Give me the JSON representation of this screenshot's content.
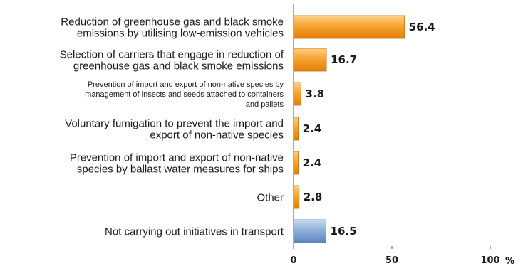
{
  "chart_data": {
    "type": "bar",
    "orientation": "horizontal",
    "categories": [
      [
        "Reduction of greenhouse gas and black smoke",
        "emissions by utilising low-emission vehicles"
      ],
      [
        "Selection of carriers that engage in reduction of",
        "greenhouse gas and black smoke emissions"
      ],
      [
        "Prevention of import and export of non-native species by",
        "management of insects and seeds attached to containers",
        "and pallets"
      ],
      [
        "Voluntary fumigation to prevent the import and",
        "export of non-native species"
      ],
      [
        "Prevention of import and export of non-native",
        "species by ballast water measures for ships"
      ],
      [
        "Other"
      ],
      [
        "Not carrying out initiatives in transport"
      ]
    ],
    "values": [
      56.4,
      16.7,
      3.8,
      2.4,
      2.4,
      2.8,
      16.5
    ],
    "value_labels": [
      "56.4",
      "16.7",
      "3.8",
      "2.4",
      "2.4",
      "2.8",
      "16.5"
    ],
    "bar_colors": [
      "#f39a1c",
      "#f39a1c",
      "#f39a1c",
      "#f39a1c",
      "#f39a1c",
      "#f39a1c",
      "#7ea3d1"
    ],
    "xlim": [
      0,
      100
    ],
    "xticks": [
      "0",
      "50",
      "100"
    ],
    "xunit": "%",
    "grid": false
  }
}
